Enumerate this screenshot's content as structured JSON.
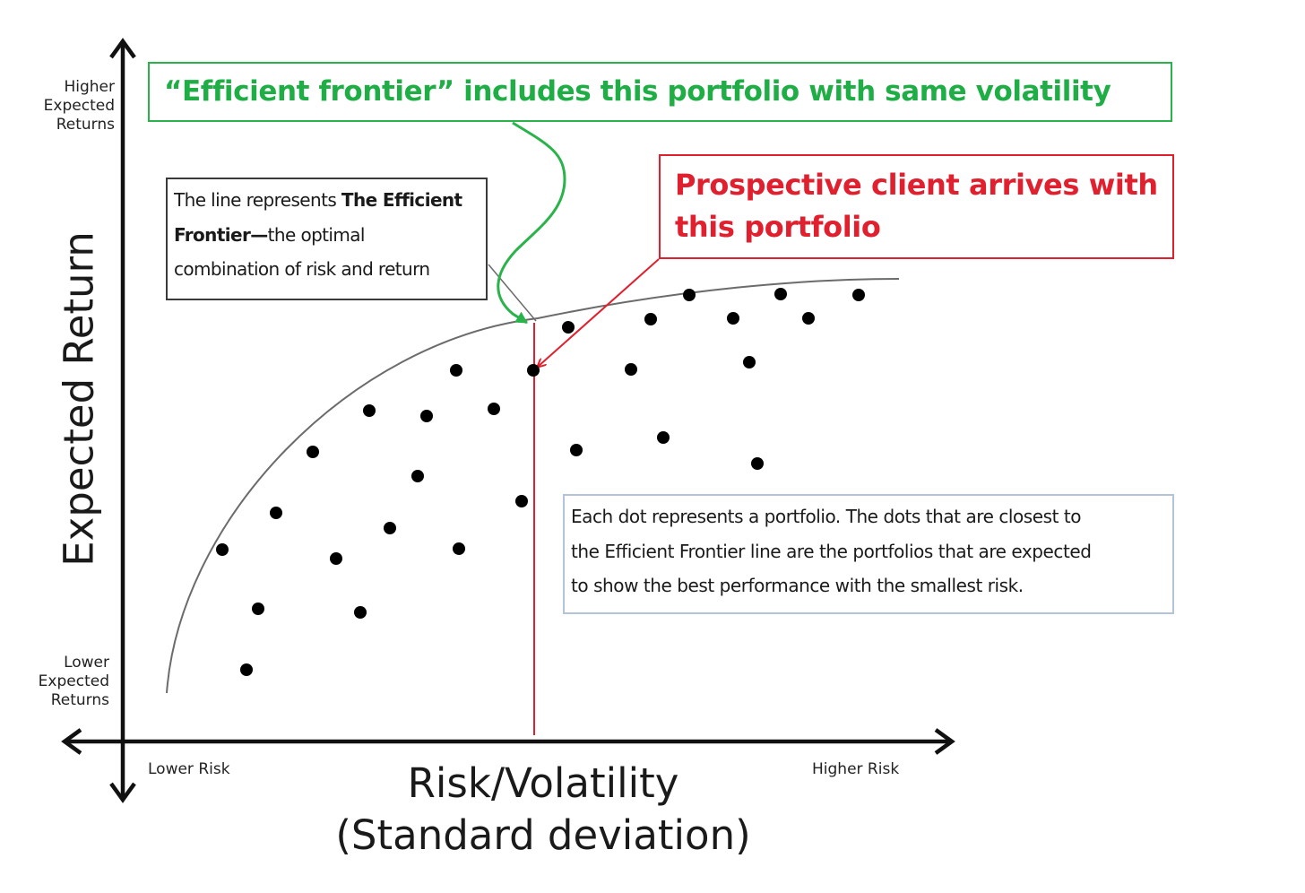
{
  "callouts": {
    "efficient_frontier_title": "“Efficient frontier” includes this portfolio with same volatility",
    "prospective_client_line1": "Prospective client arrives with",
    "prospective_client_line2": "this portfolio",
    "frontier_line1_a": "The line represents ",
    "frontier_line1_b": "The Efficient",
    "frontier_line2_a": "Frontier—",
    "frontier_line2_b": "the optimal",
    "frontier_line3": "combination of risk and return",
    "dots_line1": "Each dot represents a portfolio. The dots that are closest to",
    "dots_line2": "the Efficient Frontier line are the portfolios that are expected",
    "dots_line3": "to show the best performance with the smallest risk."
  },
  "axes": {
    "y_title": "Expected Return",
    "x_title_line1": "Risk/Volatility",
    "x_title_line2": "(Standard deviation)",
    "higher_returns": [
      "Higher",
      "Expected",
      "Returns"
    ],
    "lower_returns": [
      "Lower",
      "Expected",
      "Returns"
    ],
    "lower_risk": "Lower Risk",
    "higher_risk": "Higher Risk"
  },
  "colors": {
    "green": "#29b34a",
    "red": "#e0202e",
    "curve": "#6b6b6b",
    "axis": "#111111",
    "dot": "#000000"
  }
}
